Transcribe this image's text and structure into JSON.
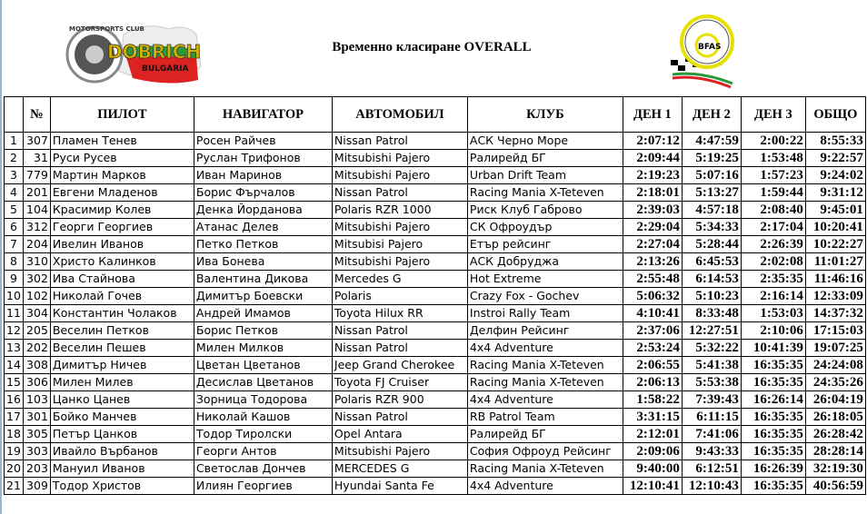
{
  "header": {
    "title": "Временно класиране OVERALL",
    "logo_left_text": "MOTORSPORTS CLUB DOBRICH BULGARIA",
    "logo_right_text": "BFAS"
  },
  "columns": [
    "",
    "№",
    "ПИЛОТ",
    "НАВИГАТОР",
    "АВТОМОБИЛ",
    "КЛУБ",
    "ДЕН 1",
    "ДЕН 2",
    "ДЕН 3",
    "ОБЩО"
  ],
  "rows": [
    [
      "1",
      "307",
      "Пламен Тенев",
      "Росен Райчев",
      "Nissan Patrol",
      "АСК Черно Море",
      "2:07:12",
      "4:47:59",
      "2:00:22",
      "8:55:33"
    ],
    [
      "2",
      "31",
      "Руси Русев",
      "Руслан Трифонов",
      "Mitsubishi Pajero",
      "Ралирейд БГ",
      "2:09:44",
      "5:19:25",
      "1:53:48",
      "9:22:57"
    ],
    [
      "3",
      "779",
      "Мартин Марков",
      "Иван Маринов",
      "Mitsubishi Pajero",
      "Urban Drift Team",
      "2:19:23",
      "5:07:16",
      "1:57:23",
      "9:24:02"
    ],
    [
      "4",
      "201",
      "Евгени Младенов",
      "Борис Фърчалов",
      "Nissan Patrol",
      "Racing Mania X-Teteven",
      "2:18:01",
      "5:13:27",
      "1:59:44",
      "9:31:12"
    ],
    [
      "5",
      "104",
      "Красимир Колев",
      "Денка Йорданова",
      "Polaris RZR 1000",
      "Риск Клуб Габрово",
      "2:39:03",
      "4:57:18",
      "2:08:40",
      "9:45:01"
    ],
    [
      "6",
      "312",
      "Георги Георгиев",
      "Атанас Делев",
      "Mitsubishi Pajero",
      "СК Офроудър",
      "2:29:04",
      "5:34:33",
      "2:17:04",
      "10:20:41"
    ],
    [
      "7",
      "204",
      "Ивелин Иванов",
      "Петко Петков",
      "Mitsubisi Pajero",
      "Етър рейсинг",
      "2:27:04",
      "5:28:44",
      "2:26:39",
      "10:22:27"
    ],
    [
      "8",
      "310",
      "Христо Калинков",
      "Ива Бонева",
      "Mitsubishi Pajero",
      "АСК Добруджа",
      "2:13:26",
      "6:45:53",
      "2:02:08",
      "11:01:27"
    ],
    [
      "9",
      "302",
      "Ива Стайнова",
      "Валентина Дикова",
      "Mercedes G",
      "Hot Extreme",
      "2:55:48",
      "6:14:53",
      "2:35:35",
      "11:46:16"
    ],
    [
      "10",
      "102",
      "Николай Гочев",
      "Димитър Боевски",
      "Polaris",
      "Crazy Fox - Gochev",
      "5:06:32",
      "5:10:23",
      "2:16:14",
      "12:33:09"
    ],
    [
      "11",
      "304",
      "Константин Чолаков",
      "Андрей Имамов",
      "Toyota Hilux RR",
      "Instroi Rally Team",
      "4:10:41",
      "8:33:48",
      "1:53:03",
      "14:37:32"
    ],
    [
      "12",
      "205",
      "Веселин Петков",
      "Борис Петков",
      "Nissan Patrol",
      "Делфин Рейсинг",
      "2:37:06",
      "12:27:51",
      "2:10:06",
      "17:15:03"
    ],
    [
      "13",
      "202",
      "Веселин Пешев",
      "Милен Милков",
      "Nissan Patrol",
      "4x4 Adventure",
      "2:53:24",
      "5:32:22",
      "10:41:39",
      "19:07:25"
    ],
    [
      "14",
      "308",
      "Димитър Ничев",
      "Цветан Цветанов",
      "Jeep Grand Cherokee",
      "Racing Mania X-Teteven",
      "2:06:55",
      "5:41:38",
      "16:35:35",
      "24:24:08"
    ],
    [
      "15",
      "306",
      "Милен Милев",
      "Десислав Цветанов",
      "Toyota FJ Cruiser",
      "Racing Mania X-Teteven",
      "2:06:13",
      "5:53:38",
      "16:35:35",
      "24:35:26"
    ],
    [
      "16",
      "103",
      "Цанко Цанев",
      "Зорница Тодорова",
      "Polaris RZR 900",
      "4x4 Adventure",
      "1:58:22",
      "7:39:43",
      "16:26:14",
      "26:04:19"
    ],
    [
      "17",
      "301",
      "Бойко Манчев",
      "Николай Кашов",
      "Nissan Patrol",
      "RB Patrol Team",
      "3:31:15",
      "6:11:15",
      "16:35:35",
      "26:18:05"
    ],
    [
      "18",
      "305",
      "Петър Цанков",
      "Тодор Тиролски",
      "Opel Antara",
      "Ралирейд БГ",
      "2:12:01",
      "7:41:06",
      "16:35:35",
      "26:28:42"
    ],
    [
      "19",
      "303",
      "Ивайло Върбанов",
      "Георги Антов",
      "Mitsubishi Pajero",
      "София Офроуд Рейсинг",
      "2:09:06",
      "9:43:33",
      "16:35:35",
      "28:28:14"
    ],
    [
      "20",
      "203",
      "Мануил Иванов",
      "Светослав Дончев",
      "MERCEDES G",
      "Racing Mania X-Teteven",
      "9:40:00",
      "6:12:51",
      "16:26:39",
      "32:19:30"
    ],
    [
      "21",
      "309",
      "Тодор Христов",
      "Илиян Георгиев",
      "Hyundai Santa Fe",
      "4x4 Adventure",
      "12:10:41",
      "12:10:43",
      "16:35:35",
      "40:56:59"
    ]
  ]
}
